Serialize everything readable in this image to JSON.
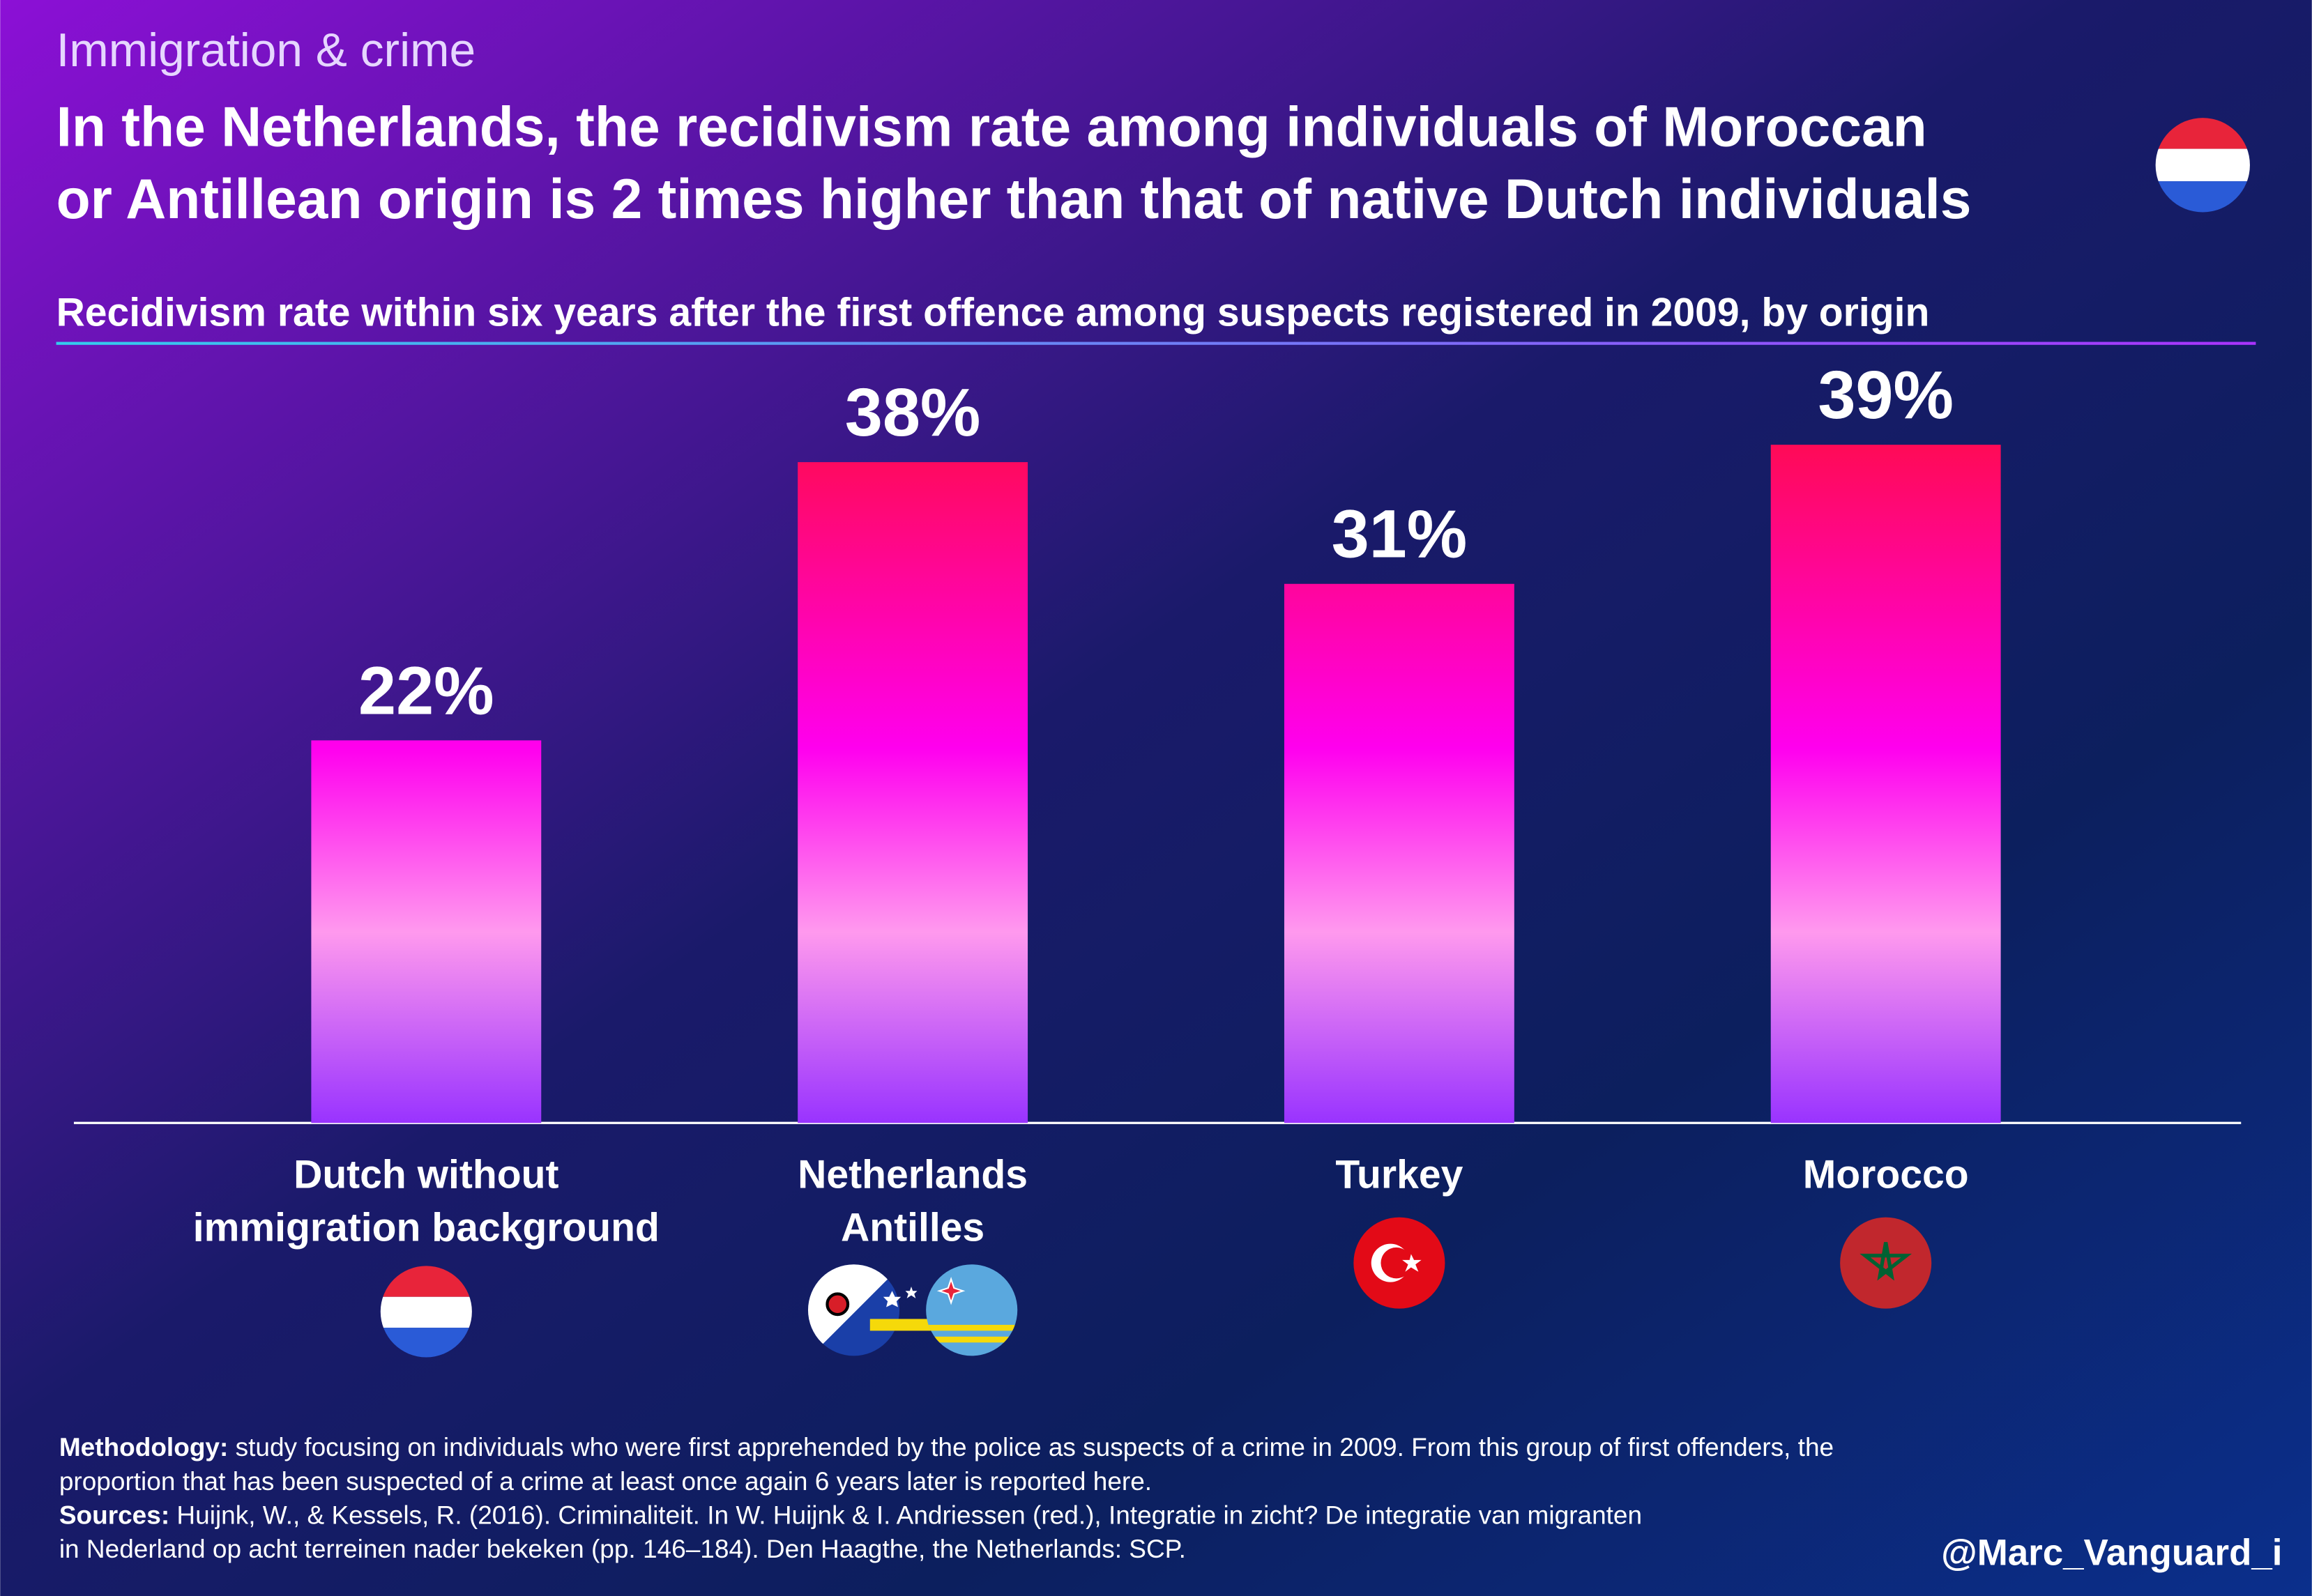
{
  "chart_data": {
    "type": "bar",
    "kicker": "Immigration & crime",
    "title": [
      "In the Netherlands, the recidivism rate among individuals of Moroccan",
      "or Antillean origin is 2 times higher than that of native Dutch individuals"
    ],
    "subtitle": "Recidivism rate within six years after the first offence among suspects registered in 2009, by origin",
    "categories": [
      "Dutch without\nimmigration background",
      "Netherlands\nAntilles",
      "Turkey",
      "Morocco"
    ],
    "values": [
      22,
      38,
      31,
      39
    ],
    "value_labels": [
      "22%",
      "38%",
      "31%",
      "39%"
    ],
    "ylim": [
      0,
      50
    ]
  },
  "footer": {
    "methodology_label": "Methodology:",
    "methodology_lines": [
      " study focusing on individuals who were first apprehended by the police as suspects of a crime in 2009. From this group of first offenders, the",
      "proportion that has been suspected of a crime at least once again 6 years later is reported here."
    ],
    "sources_label": "Sources:",
    "sources_lines": [
      " Huijnk, W., & Kessels, R. (2016). Criminaliteit. In W. Huijnk & I. Andriessen (red.), Integratie in zicht? De integratie van migranten",
      "in Nederland op acht terreinen nader bekeken (pp. 146–184). Den Haagthe, the Netherlands: SCP."
    ],
    "handle": "@Marc_Vanguard_i"
  }
}
